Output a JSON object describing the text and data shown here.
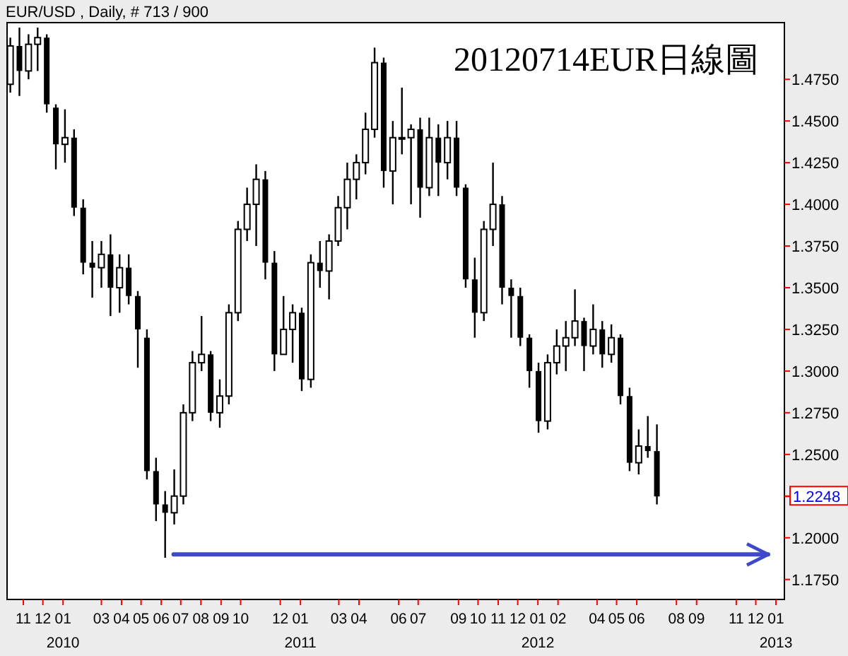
{
  "chart_data": {
    "type": "candlestick",
    "title": "20120714EUR日線圖",
    "subtitle": "EUR/USD , Daily, # 713 / 900",
    "xlim": [
      "2009-10-07",
      "2013-01-14"
    ],
    "ylim": [
      1.163,
      1.509
    ],
    "yticks": [
      {
        "value": 1.175,
        "label": "1.1750"
      },
      {
        "value": 1.2,
        "label": "1.2000"
      },
      {
        "value": 1.225,
        "label": null
      },
      {
        "value": 1.25,
        "label": "1.2500"
      },
      {
        "value": 1.275,
        "label": "1.2750"
      },
      {
        "value": 1.3,
        "label": "1.3000"
      },
      {
        "value": 1.325,
        "label": "1.3250"
      },
      {
        "value": 1.35,
        "label": "1.3500"
      },
      {
        "value": 1.375,
        "label": "1.3750"
      },
      {
        "value": 1.4,
        "label": "1.4000"
      },
      {
        "value": 1.425,
        "label": "1.4250"
      },
      {
        "value": 1.45,
        "label": "1.4500"
      },
      {
        "value": 1.475,
        "label": "1.4750"
      }
    ],
    "xticks": [
      {
        "value": "2009-11-01",
        "label": "11"
      },
      {
        "value": "2009-12-01",
        "label": "12"
      },
      {
        "value": "2010-01-01",
        "label": "01"
      },
      {
        "value": "2010-03-01",
        "label": "03"
      },
      {
        "value": "2010-04-01",
        "label": "04"
      },
      {
        "value": "2010-05-01",
        "label": "05"
      },
      {
        "value": "2010-06-01",
        "label": "06"
      },
      {
        "value": "2010-07-01",
        "label": "07"
      },
      {
        "value": "2010-08-01",
        "label": "08"
      },
      {
        "value": "2010-09-01",
        "label": "09"
      },
      {
        "value": "2010-10-01",
        "label": "10"
      },
      {
        "value": "2010-12-01",
        "label": "12"
      },
      {
        "value": "2011-01-01",
        "label": "01"
      },
      {
        "value": "2011-03-01",
        "label": "03"
      },
      {
        "value": "2011-04-01",
        "label": "04"
      },
      {
        "value": "2011-06-01",
        "label": "06"
      },
      {
        "value": "2011-07-01",
        "label": "07"
      },
      {
        "value": "2011-09-01",
        "label": "09"
      },
      {
        "value": "2011-10-01",
        "label": "10"
      },
      {
        "value": "2011-11-01",
        "label": "11"
      },
      {
        "value": "2011-12-01",
        "label": "12"
      },
      {
        "value": "2012-01-01",
        "label": "01"
      },
      {
        "value": "2012-02-01",
        "label": "02"
      },
      {
        "value": "2012-04-01",
        "label": "04"
      },
      {
        "value": "2012-05-01",
        "label": "05"
      },
      {
        "value": "2012-06-01",
        "label": "06"
      },
      {
        "value": "2012-08-01",
        "label": "08"
      },
      {
        "value": "2012-09-01",
        "label": "09"
      },
      {
        "value": "2012-11-01",
        "label": "11"
      },
      {
        "value": "2012-12-01",
        "label": "12"
      },
      {
        "value": "2013-01-01",
        "label": "01"
      }
    ],
    "x2lim": [
      "2009-10-07",
      "2013-01-14"
    ],
    "x2ticks": [
      {
        "value": "2010-01-01",
        "label": "2010"
      },
      {
        "value": "2011-01-01",
        "label": "2011"
      },
      {
        "value": "2012-01-01",
        "label": "2012"
      },
      {
        "value": "2013-01-01",
        "label": "2013"
      }
    ],
    "grid": false,
    "annotations": [
      "1.2248"
    ],
    "series": [
      {
        "type": "candlestick",
        "color": "#000000",
        "x": [
          "2009-10-12",
          "2009-10-26",
          "2009-11-09",
          "2009-11-23",
          "2009-12-07",
          "2009-12-21",
          "2010-01-04",
          "2010-01-18",
          "2010-02-01",
          "2010-02-15",
          "2010-03-01",
          "2010-03-15",
          "2010-03-29",
          "2010-04-12",
          "2010-04-26",
          "2010-05-10",
          "2010-05-24",
          "2010-06-07",
          "2010-06-21",
          "2010-07-05",
          "2010-07-19",
          "2010-08-02",
          "2010-08-16",
          "2010-08-30",
          "2010-09-13",
          "2010-09-27",
          "2010-10-11",
          "2010-10-25",
          "2010-11-08",
          "2010-11-22",
          "2010-12-06",
          "2010-12-20",
          "2011-01-03",
          "2011-01-17",
          "2011-01-31",
          "2011-02-14",
          "2011-02-28",
          "2011-03-14",
          "2011-03-28",
          "2011-04-11",
          "2011-04-25",
          "2011-05-09",
          "2011-05-23",
          "2011-06-06",
          "2011-06-20",
          "2011-07-04",
          "2011-07-18",
          "2011-08-01",
          "2011-08-15",
          "2011-08-29",
          "2011-09-12",
          "2011-09-26",
          "2011-10-10",
          "2011-10-24",
          "2011-11-07",
          "2011-11-21",
          "2011-12-05",
          "2011-12-19",
          "2012-01-02",
          "2012-01-16",
          "2012-01-30",
          "2012-02-13",
          "2012-02-27",
          "2012-03-12",
          "2012-03-26",
          "2012-04-09",
          "2012-04-23",
          "2012-05-07",
          "2012-05-21",
          "2012-06-04",
          "2012-06-18",
          "2012-07-02"
        ],
        "ohlc": [
          [
            1.472,
            1.5,
            1.467,
            1.495
          ],
          [
            1.495,
            1.506,
            1.465,
            1.48
          ],
          [
            1.48,
            1.502,
            1.475,
            1.496
          ],
          [
            1.496,
            1.506,
            1.48,
            1.5
          ],
          [
            1.5,
            1.502,
            1.455,
            1.46
          ],
          [
            1.458,
            1.46,
            1.421,
            1.436
          ],
          [
            1.436,
            1.457,
            1.425,
            1.44
          ],
          [
            1.44,
            1.445,
            1.393,
            1.398
          ],
          [
            1.398,
            1.403,
            1.358,
            1.365
          ],
          [
            1.365,
            1.378,
            1.344,
            1.362
          ],
          [
            1.362,
            1.378,
            1.35,
            1.37
          ],
          [
            1.37,
            1.382,
            1.333,
            1.35
          ],
          [
            1.35,
            1.37,
            1.335,
            1.362
          ],
          [
            1.362,
            1.37,
            1.34,
            1.345
          ],
          [
            1.345,
            1.348,
            1.302,
            1.325
          ],
          [
            1.32,
            1.325,
            1.235,
            1.24
          ],
          [
            1.24,
            1.248,
            1.21,
            1.22
          ],
          [
            1.22,
            1.228,
            1.188,
            1.215
          ],
          [
            1.215,
            1.241,
            1.208,
            1.225
          ],
          [
            1.225,
            1.28,
            1.22,
            1.275
          ],
          [
            1.275,
            1.312,
            1.27,
            1.305
          ],
          [
            1.305,
            1.333,
            1.3,
            1.31
          ],
          [
            1.31,
            1.312,
            1.27,
            1.275
          ],
          [
            1.275,
            1.295,
            1.266,
            1.285
          ],
          [
            1.285,
            1.34,
            1.28,
            1.335
          ],
          [
            1.335,
            1.39,
            1.33,
            1.385
          ],
          [
            1.385,
            1.41,
            1.378,
            1.4
          ],
          [
            1.4,
            1.424,
            1.375,
            1.415
          ],
          [
            1.415,
            1.42,
            1.355,
            1.365
          ],
          [
            1.365,
            1.372,
            1.3,
            1.31
          ],
          [
            1.31,
            1.345,
            1.31,
            1.325
          ],
          [
            1.325,
            1.34,
            1.305,
            1.335
          ],
          [
            1.335,
            1.338,
            1.288,
            1.295
          ],
          [
            1.295,
            1.37,
            1.29,
            1.365
          ],
          [
            1.365,
            1.378,
            1.35,
            1.36
          ],
          [
            1.36,
            1.382,
            1.343,
            1.378
          ],
          [
            1.378,
            1.405,
            1.375,
            1.398
          ],
          [
            1.398,
            1.425,
            1.385,
            1.415
          ],
          [
            1.415,
            1.43,
            1.403,
            1.425
          ],
          [
            1.425,
            1.455,
            1.418,
            1.445
          ],
          [
            1.445,
            1.494,
            1.44,
            1.485
          ],
          [
            1.485,
            1.488,
            1.41,
            1.42
          ],
          [
            1.42,
            1.45,
            1.4,
            1.44
          ],
          [
            1.44,
            1.47,
            1.43,
            1.44
          ],
          [
            1.44,
            1.448,
            1.4,
            1.445
          ],
          [
            1.445,
            1.452,
            1.392,
            1.41
          ],
          [
            1.41,
            1.452,
            1.405,
            1.44
          ],
          [
            1.44,
            1.448,
            1.405,
            1.425
          ],
          [
            1.425,
            1.45,
            1.415,
            1.44
          ],
          [
            1.44,
            1.45,
            1.405,
            1.41
          ],
          [
            1.41,
            1.412,
            1.35,
            1.355
          ],
          [
            1.355,
            1.368,
            1.32,
            1.335
          ],
          [
            1.335,
            1.39,
            1.33,
            1.385
          ],
          [
            1.385,
            1.425,
            1.375,
            1.4
          ],
          [
            1.4,
            1.405,
            1.34,
            1.35
          ],
          [
            1.35,
            1.355,
            1.32,
            1.345
          ],
          [
            1.345,
            1.35,
            1.315,
            1.32
          ],
          [
            1.32,
            1.322,
            1.29,
            1.3
          ],
          [
            1.3,
            1.305,
            1.263,
            1.27
          ],
          [
            1.27,
            1.31,
            1.265,
            1.305
          ],
          [
            1.305,
            1.325,
            1.298,
            1.315
          ],
          [
            1.315,
            1.33,
            1.3,
            1.32
          ],
          [
            1.32,
            1.349,
            1.315,
            1.33
          ],
          [
            1.33,
            1.332,
            1.3,
            1.315
          ],
          [
            1.315,
            1.34,
            1.31,
            1.325
          ],
          [
            1.325,
            1.33,
            1.302,
            1.31
          ],
          [
            1.31,
            1.328,
            1.305,
            1.32
          ],
          [
            1.32,
            1.322,
            1.28,
            1.285
          ],
          [
            1.285,
            1.29,
            1.24,
            1.245
          ],
          [
            1.245,
            1.265,
            1.238,
            1.255
          ],
          [
            1.255,
            1.273,
            1.248,
            1.252
          ],
          [
            1.252,
            1.268,
            1.22,
            1.2248
          ]
        ]
      },
      {
        "type": "line",
        "color": "#3f48cc",
        "x": [
          "2010-06-20",
          "2012-12-20"
        ],
        "values": [
          1.19,
          1.19
        ]
      }
    ]
  }
}
